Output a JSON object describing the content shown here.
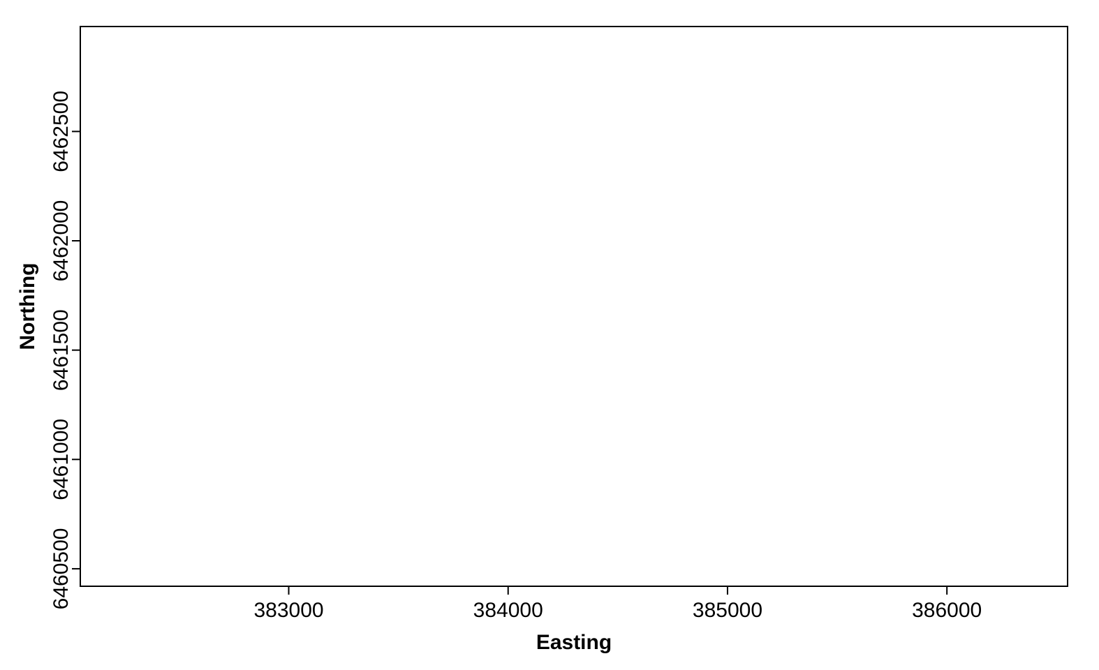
{
  "chart_data": {
    "type": "scatter",
    "title": "",
    "xlabel": "Easting",
    "ylabel": "Northing",
    "xlim": [
      382050,
      386550
    ],
    "ylim": [
      6460420,
      6462980
    ],
    "x_ticks": [
      383000,
      384000,
      385000,
      386000
    ],
    "y_ticks": [
      6460500,
      6461000,
      6461500,
      6462000,
      6462500
    ],
    "x_tick_labels": [
      "383000",
      "384000",
      "385000",
      "386000"
    ],
    "y_tick_labels": [
      "6460500",
      "6461000",
      "6461500",
      "6462000",
      "6462500"
    ],
    "series": [],
    "grid": false,
    "colors": {
      "axis": "#000000",
      "background": "#ffffff"
    }
  }
}
